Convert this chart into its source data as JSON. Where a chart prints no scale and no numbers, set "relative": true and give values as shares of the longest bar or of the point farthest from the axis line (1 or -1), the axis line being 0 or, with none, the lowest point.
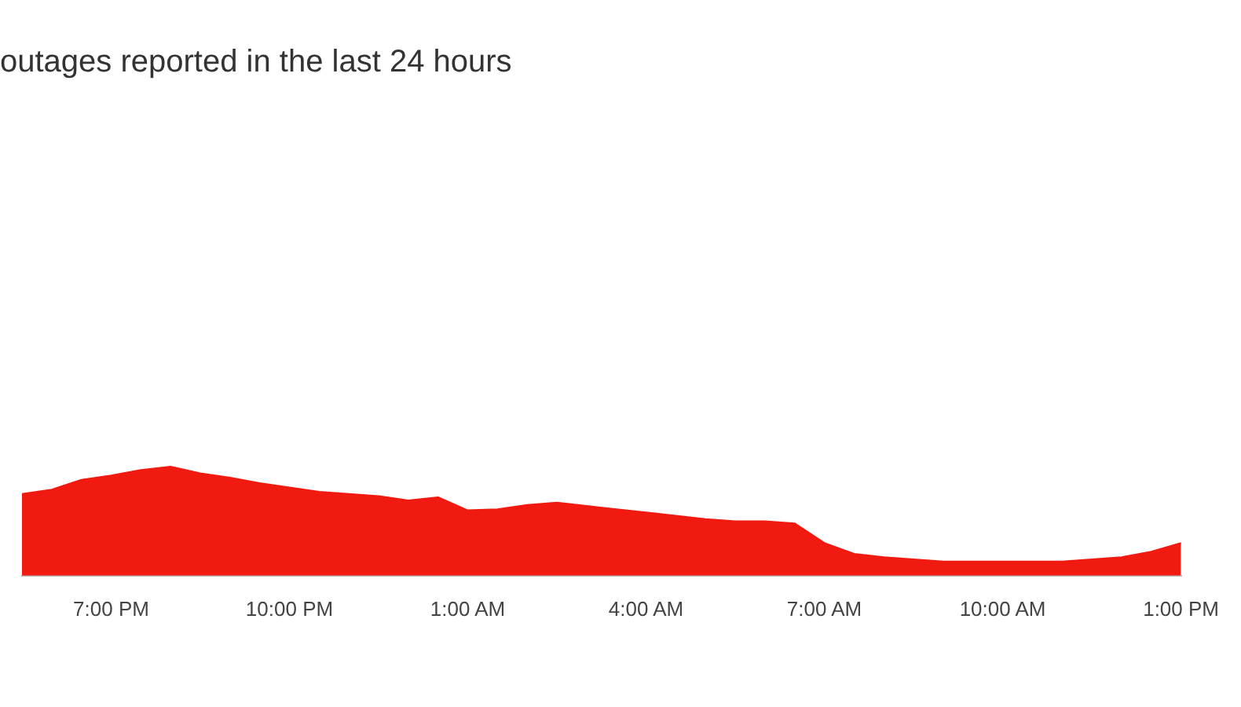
{
  "chart_data": {
    "type": "area",
    "title": "outages reported in the last 24 hours",
    "relative": true,
    "color": "#f01a10",
    "legend": false,
    "marker": "none",
    "categories": [
      null,
      null,
      null,
      "7:00 PM",
      null,
      null,
      null,
      null,
      null,
      "10:00 PM",
      null,
      null,
      null,
      null,
      null,
      "1:00 AM",
      null,
      null,
      null,
      null,
      null,
      "4:00 AM",
      null,
      null,
      null,
      null,
      null,
      "7:00 AM",
      null,
      null,
      null,
      null,
      null,
      "10:00 AM",
      null,
      null,
      null,
      null,
      null,
      "1:00 PM"
    ],
    "values": [
      0.75,
      0.79,
      0.88,
      0.92,
      0.97,
      1,
      0.94,
      0.9,
      0.85,
      0.81,
      0.77,
      0.75,
      0.73,
      0.69,
      0.72,
      0.6,
      0.61,
      0.65,
      0.67,
      0.64,
      0.61,
      0.58,
      0.55,
      0.52,
      0.5,
      0.5,
      0.48,
      0.3,
      0.2,
      0.17,
      0.15,
      0.13,
      0.13,
      0.13,
      0.13,
      0.13,
      0.15,
      0.17,
      0.22,
      0.3
    ]
  }
}
